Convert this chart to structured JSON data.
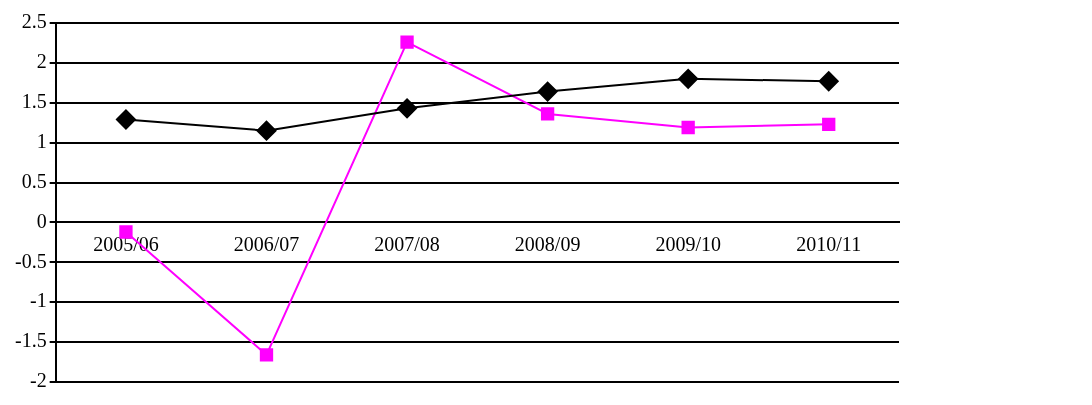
{
  "chart_data": {
    "type": "line",
    "categories": [
      "2005/06",
      "2006/07",
      "2007/08",
      "2008/09",
      "2009/10",
      "2010/11"
    ],
    "series": [
      {
        "color": "#000000",
        "marker": "diamond",
        "values": [
          1.29,
          1.15,
          1.43,
          1.64,
          1.8,
          1.77
        ]
      },
      {
        "color": "#ff00ff",
        "marker": "square",
        "values": [
          -0.12,
          -1.66,
          2.26,
          1.36,
          1.19,
          1.23
        ]
      }
    ],
    "ylim": [
      -2,
      2.5
    ],
    "yticks": [
      -2,
      -1.5,
      -1,
      -0.5,
      0,
      0.5,
      1,
      1.5,
      2,
      2.5
    ],
    "grid": "y",
    "legend": false
  }
}
